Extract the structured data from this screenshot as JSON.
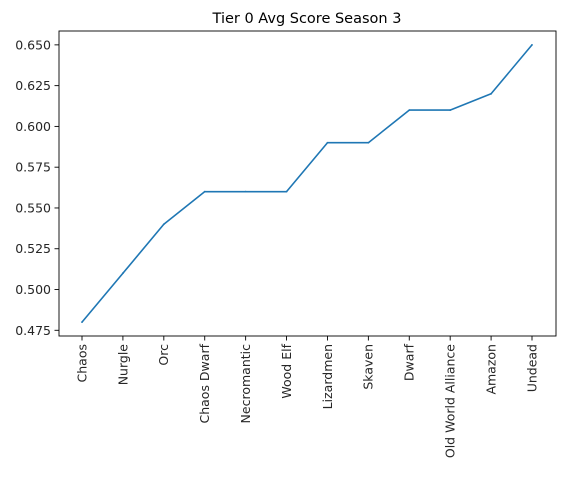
{
  "chart_data": {
    "type": "line",
    "title": "Tier 0 Avg Score Season 3",
    "xlabel": "",
    "ylabel": "",
    "categories": [
      "Chaos",
      "Nurgle",
      "Orc",
      "Chaos Dwarf",
      "Necromantic",
      "Wood Elf",
      "Lizardmen",
      "Skaven",
      "Dwarf",
      "Old World Alliance",
      "Amazon",
      "Undead"
    ],
    "series": [
      {
        "values": [
          0.48,
          0.51,
          0.54,
          0.56,
          0.56,
          0.56,
          0.59,
          0.59,
          0.61,
          0.61,
          0.62,
          0.65
        ],
        "color": "#1f77b4"
      }
    ],
    "yticks": [
      "0.475",
      "0.500",
      "0.525",
      "0.550",
      "0.575",
      "0.600",
      "0.625",
      "0.650"
    ],
    "ylim": [
      0.4715,
      0.6585
    ],
    "grid": false,
    "legend": "none"
  }
}
